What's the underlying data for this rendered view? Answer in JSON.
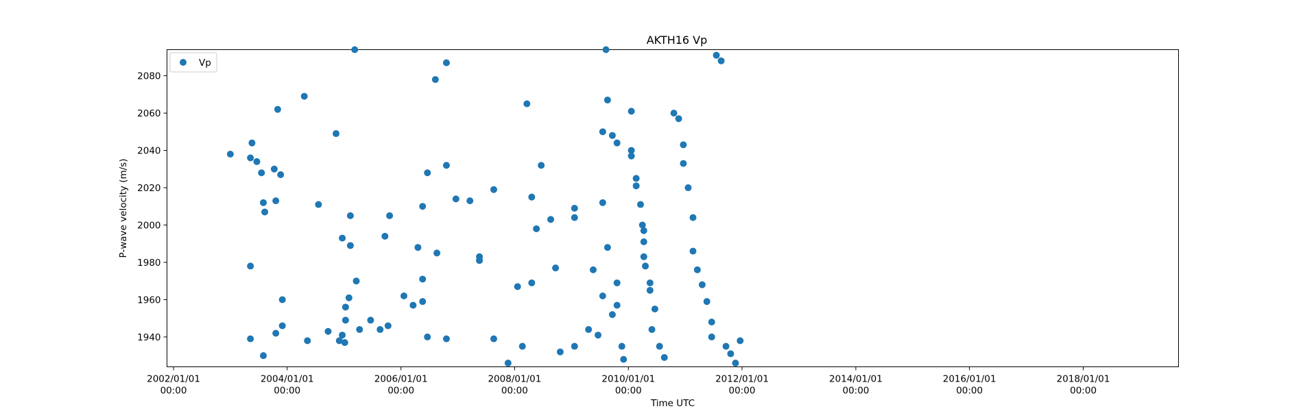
{
  "chart_data": {
    "type": "scatter",
    "title": "AKTH16 Vp",
    "xlabel": "Time UTC",
    "ylabel": "P-wave velocity (m/s)",
    "legend": {
      "placement": "upper-left",
      "entries": [
        {
          "label": "Vp",
          "color": "#1f77b4",
          "marker": "circle"
        }
      ]
    },
    "x_ticks": [
      {
        "date": "2002-01-01",
        "line1": "2002/01/01",
        "line2": "00:00"
      },
      {
        "date": "2004-01-01",
        "line1": "2004/01/01",
        "line2": "00:00"
      },
      {
        "date": "2006-01-01",
        "line1": "2006/01/01",
        "line2": "00:00"
      },
      {
        "date": "2008-01-01",
        "line1": "2008/01/01",
        "line2": "00:00"
      },
      {
        "date": "2010-01-01",
        "line1": "2010/01/01",
        "line2": "00:00"
      },
      {
        "date": "2012-01-01",
        "line1": "2012/01/01",
        "line2": "00:00"
      },
      {
        "date": "2014-01-01",
        "line1": "2014/01/01",
        "line2": "00:00"
      },
      {
        "date": "2016-01-01",
        "line1": "2016/01/01",
        "line2": "00:00"
      },
      {
        "date": "2018-01-01",
        "line1": "2018/01/01",
        "line2": "00:00"
      }
    ],
    "y_ticks": [
      1940,
      1960,
      1980,
      2000,
      2020,
      2040,
      2060,
      2080
    ],
    "xlim": [
      "2001-11-20",
      "2019-09-05"
    ],
    "ylim": [
      1924,
      2094
    ],
    "grid": false,
    "series": [
      {
        "name": "Vp",
        "color": "#1f77b4",
        "points": [
          [
            "2003-01-01",
            2038
          ],
          [
            "2003-05-20",
            2044
          ],
          [
            "2003-05-10",
            2036
          ],
          [
            "2003-06-20",
            2034
          ],
          [
            "2003-07-20",
            2028
          ],
          [
            "2003-08-01",
            2012
          ],
          [
            "2003-08-10",
            2007
          ],
          [
            "2003-10-20",
            2013
          ],
          [
            "2003-10-10",
            2030
          ],
          [
            "2003-11-20",
            2027
          ],
          [
            "2003-11-01",
            2062
          ],
          [
            "2003-05-10",
            1978
          ],
          [
            "2003-05-10",
            1939
          ],
          [
            "2003-08-01",
            1930
          ],
          [
            "2003-10-20",
            1942
          ],
          [
            "2003-12-01",
            1946
          ],
          [
            "2003-12-01",
            1960
          ],
          [
            "2004-05-10",
            1938
          ],
          [
            "2004-04-20",
            2069
          ],
          [
            "2004-07-20",
            2011
          ],
          [
            "2004-09-20",
            1943
          ],
          [
            "2004-11-10",
            2049
          ],
          [
            "2004-12-20",
            1993
          ],
          [
            "2004-12-20",
            1941
          ],
          [
            "2004-12-01",
            1938
          ],
          [
            "2005-01-05",
            1937
          ],
          [
            "2005-01-10",
            1949
          ],
          [
            "2005-01-10",
            1956
          ],
          [
            "2005-02-10",
            1989
          ],
          [
            "2005-02-10",
            2005
          ],
          [
            "2005-02-01",
            1961
          ],
          [
            "2005-03-20",
            1970
          ],
          [
            "2005-04-10",
            1944
          ],
          [
            "2005-03-10",
            2094
          ],
          [
            "2005-06-20",
            1949
          ],
          [
            "2005-08-20",
            1944
          ],
          [
            "2005-09-20",
            1994
          ],
          [
            "2005-10-20",
            2005
          ],
          [
            "2005-10-10",
            1946
          ],
          [
            "2006-01-20",
            1962
          ],
          [
            "2006-03-20",
            1957
          ],
          [
            "2006-05-20",
            1959
          ],
          [
            "2006-04-20",
            1988
          ],
          [
            "2006-05-20",
            1971
          ],
          [
            "2006-05-20",
            2010
          ],
          [
            "2006-06-20",
            2028
          ],
          [
            "2006-06-20",
            1940
          ],
          [
            "2006-08-10",
            2078
          ],
          [
            "2006-08-20",
            1985
          ],
          [
            "2006-10-20",
            2087
          ],
          [
            "2006-10-20",
            2032
          ],
          [
            "2006-10-20",
            1939
          ],
          [
            "2006-12-20",
            2014
          ],
          [
            "2007-03-20",
            2013
          ],
          [
            "2007-05-20",
            1983
          ],
          [
            "2007-05-20",
            1981
          ],
          [
            "2007-08-20",
            2019
          ],
          [
            "2007-08-20",
            1939
          ],
          [
            "2007-11-20",
            1926
          ],
          [
            "2008-01-20",
            1967
          ],
          [
            "2008-02-20",
            1935
          ],
          [
            "2008-03-20",
            2065
          ],
          [
            "2008-04-20",
            2015
          ],
          [
            "2008-05-20",
            1998
          ],
          [
            "2008-04-20",
            1969
          ],
          [
            "2008-06-20",
            2032
          ],
          [
            "2008-08-20",
            2003
          ],
          [
            "2008-09-20",
            1977
          ],
          [
            "2008-10-20",
            1932
          ],
          [
            "2009-01-20",
            2009
          ],
          [
            "2009-01-20",
            2004
          ],
          [
            "2009-01-20",
            1935
          ],
          [
            "2009-04-20",
            1944
          ],
          [
            "2009-05-20",
            1976
          ],
          [
            "2009-06-20",
            1941
          ],
          [
            "2009-07-20",
            1962
          ],
          [
            "2009-07-20",
            2050
          ],
          [
            "2009-07-20",
            2012
          ],
          [
            "2009-08-20",
            2067
          ],
          [
            "2009-08-20",
            1988
          ],
          [
            "2009-08-10",
            2094
          ],
          [
            "2009-09-20",
            2048
          ],
          [
            "2009-10-20",
            2044
          ],
          [
            "2009-09-20",
            1952
          ],
          [
            "2009-10-20",
            1969
          ],
          [
            "2009-10-20",
            1957
          ],
          [
            "2009-11-20",
            1935
          ],
          [
            "2009-12-01",
            1928
          ],
          [
            "2010-01-20",
            2061
          ],
          [
            "2010-01-20",
            2040
          ],
          [
            "2010-01-20",
            2037
          ],
          [
            "2010-02-20",
            2025
          ],
          [
            "2010-02-20",
            2021
          ],
          [
            "2010-03-20",
            2011
          ],
          [
            "2010-04-01",
            2000
          ],
          [
            "2010-04-10",
            1997
          ],
          [
            "2010-04-10",
            1991
          ],
          [
            "2010-04-10",
            1983
          ],
          [
            "2010-04-20",
            1978
          ],
          [
            "2010-05-20",
            1969
          ],
          [
            "2010-05-20",
            1965
          ],
          [
            "2010-06-20",
            1955
          ],
          [
            "2010-06-01",
            1944
          ],
          [
            "2010-07-20",
            1935
          ],
          [
            "2010-08-20",
            1929
          ],
          [
            "2010-10-20",
            2060
          ],
          [
            "2010-11-20",
            2057
          ],
          [
            "2010-12-20",
            2043
          ],
          [
            "2010-12-20",
            2033
          ],
          [
            "2011-01-20",
            2020
          ],
          [
            "2011-02-20",
            2004
          ],
          [
            "2011-02-20",
            1986
          ],
          [
            "2011-03-20",
            1976
          ],
          [
            "2011-04-20",
            1968
          ],
          [
            "2011-05-20",
            1959
          ],
          [
            "2011-06-20",
            1948
          ],
          [
            "2011-06-20",
            1940
          ],
          [
            "2011-07-20",
            2091
          ],
          [
            "2011-08-20",
            2088
          ],
          [
            "2011-09-20",
            1935
          ],
          [
            "2011-10-20",
            1931
          ],
          [
            "2011-11-20",
            1926
          ],
          [
            "2011-12-20",
            1938
          ]
        ]
      }
    ]
  }
}
